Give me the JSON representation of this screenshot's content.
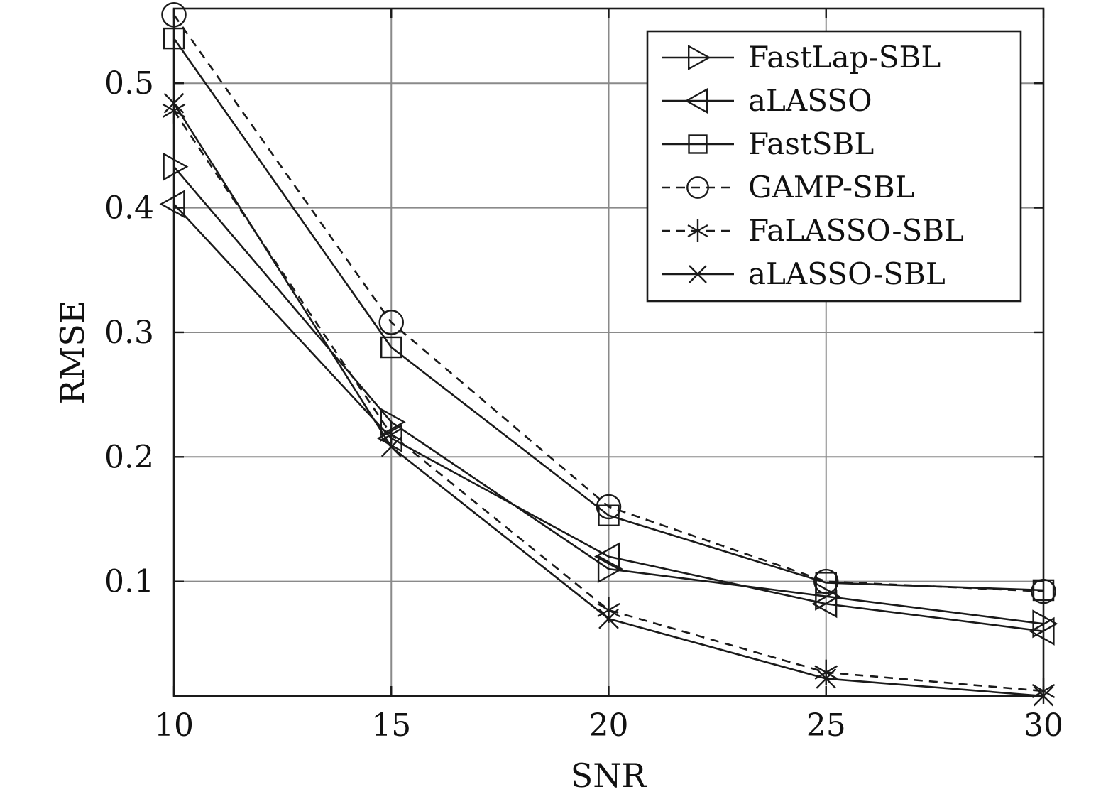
{
  "chart_data": {
    "type": "line",
    "xlabel": "SNR",
    "ylabel": "RMSE",
    "x": [
      10,
      15,
      20,
      25,
      30
    ],
    "xlim": [
      10,
      30
    ],
    "ylim": [
      0.008,
      0.56
    ],
    "xticks": [
      10,
      15,
      20,
      25,
      30
    ],
    "yticks": [
      0.1,
      0.2,
      0.3,
      0.4,
      0.5
    ],
    "ytick_labels": [
      "0.1",
      "0.2",
      "0.3",
      "0.4",
      "0.5"
    ],
    "xtick_labels": [
      "10",
      "15",
      "20",
      "25",
      "30"
    ],
    "grid": true,
    "legend_position": "top-right",
    "series": [
      {
        "name": "FastLap-SBL",
        "marker": "triangle-right",
        "dash": "solid",
        "values": [
          0.433,
          0.228,
          0.11,
          0.088,
          0.066
        ]
      },
      {
        "name": "aLASSO",
        "marker": "triangle-left",
        "dash": "solid",
        "values": [
          0.403,
          0.215,
          0.12,
          0.082,
          0.06
        ]
      },
      {
        "name": "FastSBL",
        "marker": "square",
        "dash": "solid",
        "values": [
          0.536,
          0.288,
          0.153,
          0.099,
          0.093
        ]
      },
      {
        "name": "GAMP-SBL",
        "marker": "circle",
        "dash": "dashed",
        "values": [
          0.555,
          0.308,
          0.16,
          0.1,
          0.092
        ]
      },
      {
        "name": "FaLASSO-SBL",
        "marker": "asterisk",
        "dash": "dashed",
        "values": [
          0.478,
          0.218,
          0.077,
          0.027,
          0.012
        ]
      },
      {
        "name": "aLASSO-SBL",
        "marker": "x",
        "dash": "solid",
        "values": [
          0.484,
          0.208,
          0.07,
          0.022,
          0.008
        ]
      }
    ]
  }
}
